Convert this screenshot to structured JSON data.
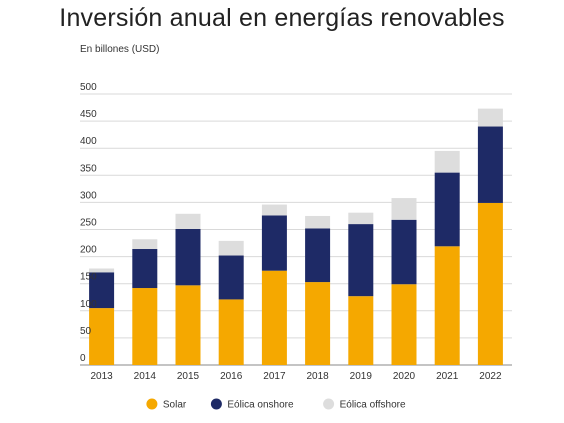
{
  "chart_data": {
    "type": "bar",
    "stacked": true,
    "title": "Inversión anual en energías renovables",
    "ylabel": "En billones (USD)",
    "xlabel": "",
    "categories": [
      "2013",
      "2014",
      "2015",
      "2016",
      "2017",
      "2018",
      "2019",
      "2020",
      "2021",
      "2022"
    ],
    "ylim": [
      0,
      500
    ],
    "yticks": [
      "0",
      "50",
      "100",
      "150",
      "200",
      "250",
      "300",
      "350",
      "400",
      "450",
      "500"
    ],
    "grid": true,
    "legend_position": "bottom",
    "series": [
      {
        "name": "Solar",
        "color": "#F5A800",
        "values": [
          105,
          142,
          147,
          121,
          174,
          153,
          127,
          149,
          219,
          299
        ]
      },
      {
        "name": "Eólica onshore",
        "color": "#1E2A66",
        "values": [
          66,
          72,
          104,
          81,
          102,
          99,
          133,
          119,
          136,
          141
        ]
      },
      {
        "name": "Eólica offshore",
        "color": "#DDDDDD",
        "values": [
          7,
          18,
          28,
          27,
          20,
          23,
          21,
          40,
          40,
          33
        ]
      }
    ]
  }
}
